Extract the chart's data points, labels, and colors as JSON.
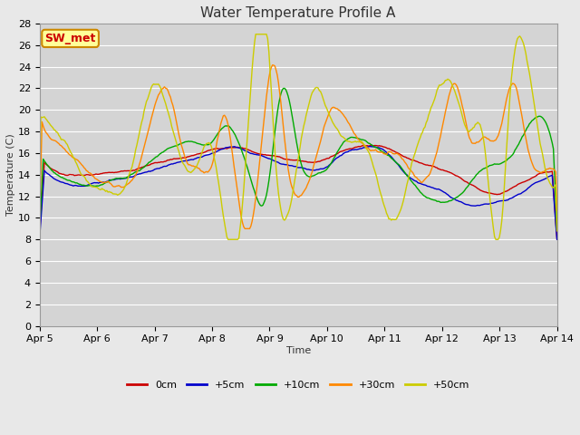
{
  "title": "Water Temperature Profile A",
  "xlabel": "Time",
  "ylabel": "Temperature (C)",
  "annotation": "SW_met",
  "ylim": [
    0,
    28
  ],
  "yticks": [
    0,
    2,
    4,
    6,
    8,
    10,
    12,
    14,
    16,
    18,
    20,
    22,
    24,
    26,
    28
  ],
  "x_labels": [
    "Apr 5",
    "Apr 6",
    "Apr 7",
    "Apr 8",
    "Apr 9",
    "Apr 10",
    "Apr 11",
    "Apr 12",
    "Apr 13",
    "Apr 14"
  ],
  "legend_labels": [
    "0cm",
    "+5cm",
    "+10cm",
    "+30cm",
    "+50cm"
  ],
  "line_colors": [
    "#cc0000",
    "#0000cc",
    "#00aa00",
    "#ff8800",
    "#cccc00"
  ],
  "fig_bg_color": "#e8e8e8",
  "plot_bg_color": "#d4d4d4",
  "annotation_bg": "#ffff99",
  "annotation_border": "#cc8800",
  "annotation_text_color": "#cc0000",
  "grid_color": "#ffffff",
  "n_points": 432,
  "days": 9
}
